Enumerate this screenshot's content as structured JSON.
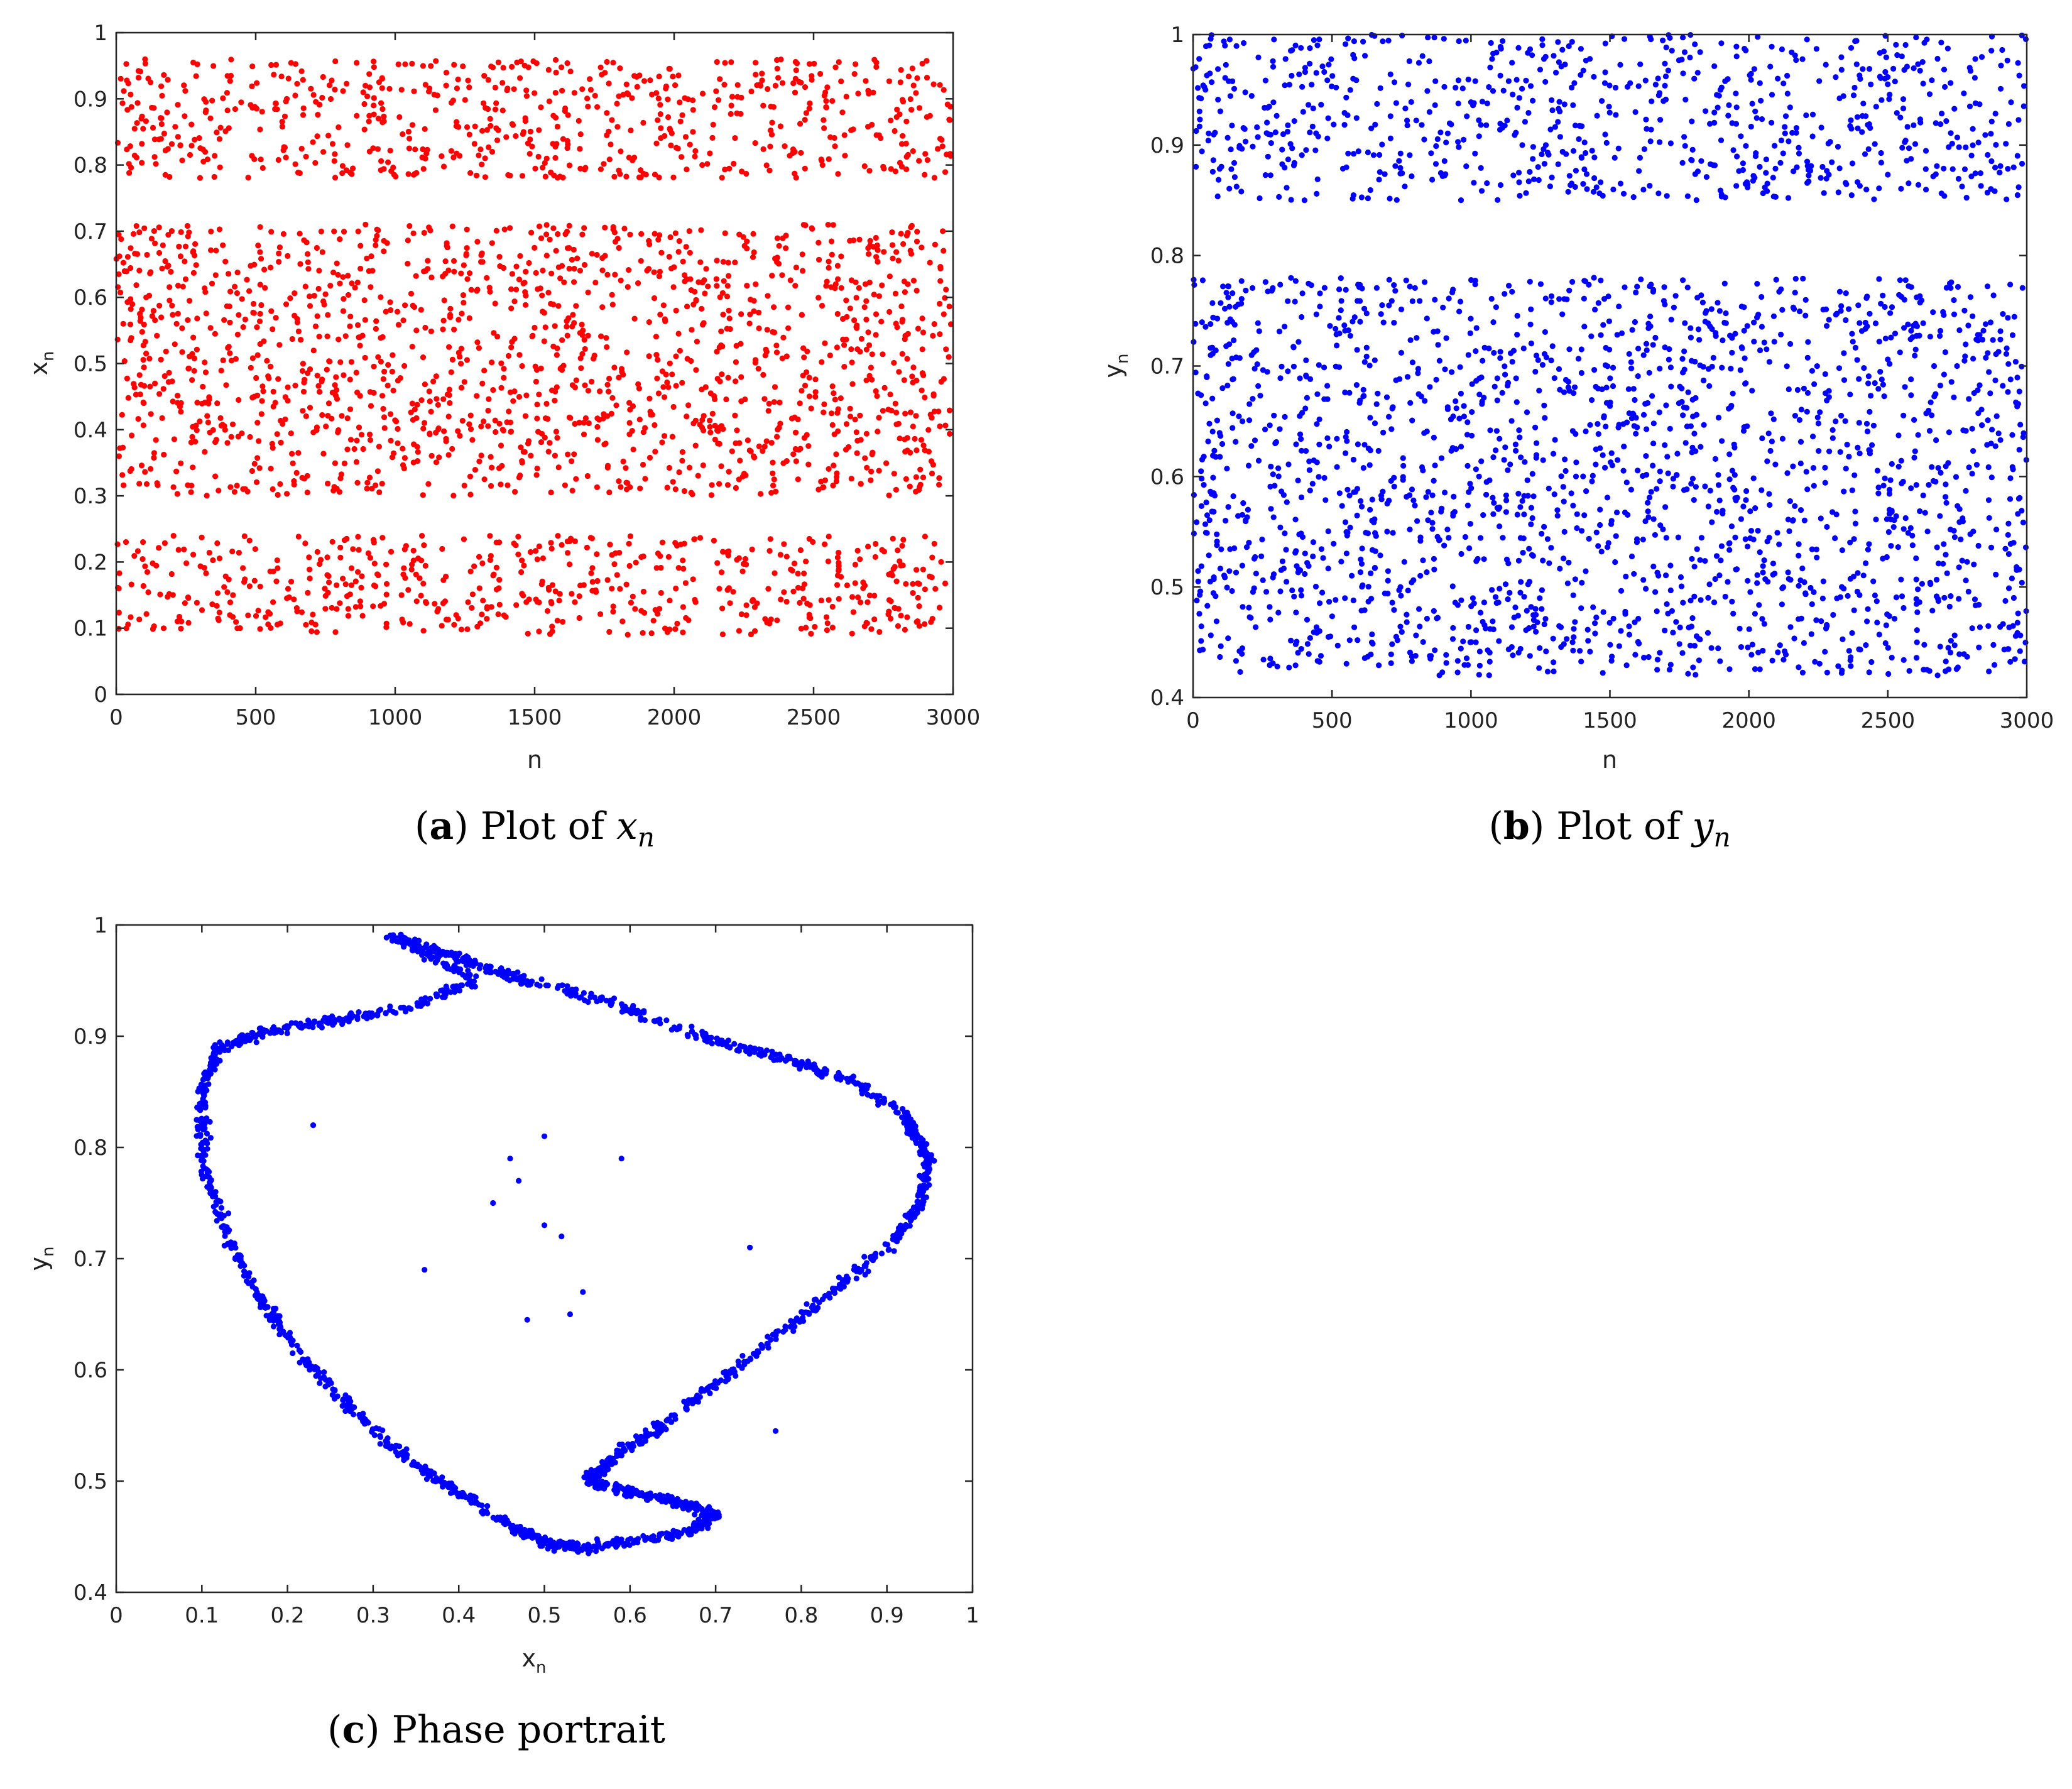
{
  "colors": {
    "red": "#ff0000",
    "blue": "#0000ff"
  },
  "chart_data": [
    {
      "id": "a",
      "type": "scatter",
      "x_range": [
        0,
        3000
      ],
      "ylim": [
        0,
        1
      ],
      "x_ticks": [
        0,
        500,
        1000,
        1500,
        2000,
        2500,
        3000
      ],
      "y_ticks": [
        0,
        0.1,
        0.2,
        0.3,
        0.4,
        0.5,
        0.6,
        0.7,
        0.8,
        0.9,
        1
      ],
      "xlabel": "n",
      "ylabel_main": "x",
      "ylabel_sub": "n",
      "y_bands": [
        [
          0.09,
          0.24
        ],
        [
          0.3,
          0.42
        ],
        [
          0.42,
          0.58
        ],
        [
          0.58,
          0.71
        ],
        [
          0.78,
          0.96
        ]
      ],
      "point_count": 2700,
      "color": "red",
      "caption_letter": "a",
      "caption_text": "Plot of ",
      "caption_var": "x",
      "caption_sub": "n"
    },
    {
      "id": "b",
      "type": "scatter",
      "x_range": [
        0,
        3000
      ],
      "ylim": [
        0.4,
        1
      ],
      "x_ticks": [
        0,
        500,
        1000,
        1500,
        2000,
        2500,
        3000
      ],
      "y_ticks": [
        0.4,
        0.5,
        0.6,
        0.7,
        0.8,
        0.9,
        1
      ],
      "xlabel": "n",
      "ylabel_main": "y",
      "ylabel_sub": "n",
      "y_bands": [
        [
          0.42,
          0.53
        ],
        [
          0.53,
          0.78
        ],
        [
          0.85,
          1.0
        ]
      ],
      "point_count": 2700,
      "color": "blue",
      "caption_letter": "b",
      "caption_text": "Plot of ",
      "caption_var": "y",
      "caption_sub": "n"
    },
    {
      "id": "c",
      "type": "scatter",
      "xlim": [
        0,
        1
      ],
      "ylim": [
        0.4,
        1
      ],
      "x_ticks": [
        0,
        0.1,
        0.2,
        0.3,
        0.4,
        0.5,
        0.6,
        0.7,
        0.8,
        0.9,
        1
      ],
      "y_ticks": [
        0.4,
        0.5,
        0.6,
        0.7,
        0.8,
        0.9,
        1
      ],
      "xlabel_main": "x",
      "xlabel_sub": "n",
      "ylabel_main": "y",
      "ylabel_sub": "n",
      "attractor_path": [
        [
          0.32,
          0.99
        ],
        [
          0.4,
          0.97
        ],
        [
          0.48,
          0.95
        ],
        [
          0.58,
          0.93
        ],
        [
          0.68,
          0.9
        ],
        [
          0.78,
          0.88
        ],
        [
          0.86,
          0.86
        ],
        [
          0.92,
          0.83
        ],
        [
          0.95,
          0.79
        ],
        [
          0.94,
          0.75
        ],
        [
          0.9,
          0.71
        ],
        [
          0.82,
          0.66
        ],
        [
          0.72,
          0.6
        ],
        [
          0.64,
          0.55
        ],
        [
          0.58,
          0.52
        ],
        [
          0.55,
          0.5
        ],
        [
          0.6,
          0.49
        ],
        [
          0.66,
          0.48
        ],
        [
          0.7,
          0.47
        ],
        [
          0.67,
          0.455
        ],
        [
          0.6,
          0.445
        ],
        [
          0.54,
          0.44
        ],
        [
          0.5,
          0.445
        ],
        [
          0.46,
          0.46
        ],
        [
          0.4,
          0.49
        ],
        [
          0.34,
          0.52
        ],
        [
          0.28,
          0.56
        ],
        [
          0.22,
          0.61
        ],
        [
          0.17,
          0.66
        ],
        [
          0.13,
          0.72
        ],
        [
          0.1,
          0.79
        ],
        [
          0.1,
          0.85
        ],
        [
          0.12,
          0.89
        ],
        [
          0.18,
          0.905
        ],
        [
          0.26,
          0.915
        ],
        [
          0.34,
          0.925
        ],
        [
          0.42,
          0.95
        ],
        [
          0.32,
          0.99
        ]
      ],
      "scattered_points": [
        [
          0.23,
          0.82
        ],
        [
          0.36,
          0.69
        ],
        [
          0.46,
          0.79
        ],
        [
          0.5,
          0.81
        ],
        [
          0.59,
          0.79
        ],
        [
          0.74,
          0.71
        ],
        [
          0.48,
          0.645
        ],
        [
          0.53,
          0.65
        ],
        [
          0.545,
          0.67
        ],
        [
          0.77,
          0.545
        ],
        [
          0.47,
          0.77
        ],
        [
          0.5,
          0.73
        ],
        [
          0.52,
          0.72
        ],
        [
          0.44,
          0.75
        ]
      ],
      "point_count": 2000,
      "color": "blue",
      "caption_letter": "c",
      "caption_text": "Phase portrait"
    }
  ]
}
